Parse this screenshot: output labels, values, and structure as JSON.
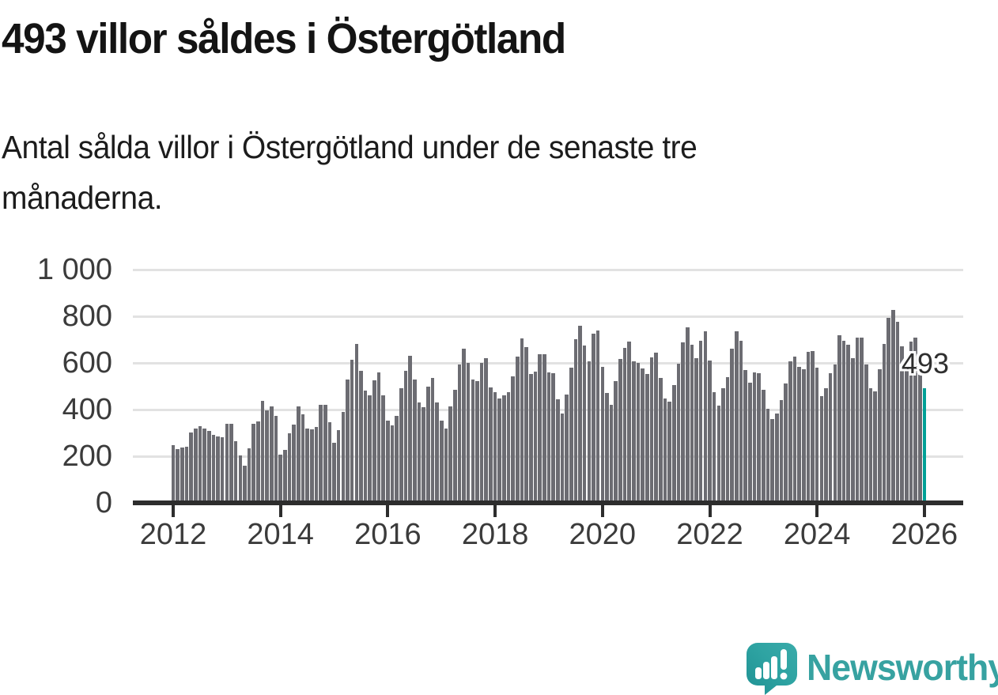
{
  "header": {
    "title": "493 villor såldes i Östergötland",
    "subtitle_line1": "Antal sålda villor i Östergötland under de senaste tre",
    "subtitle_line2": "månaderna."
  },
  "chart_data": {
    "type": "bar",
    "title": "Antal sålda villor i Östergötland under de senaste tre månaderna",
    "frequency": "monthly",
    "start_month": "2012-01",
    "end_month": "2026-01",
    "values": [
      248,
      231,
      236,
      240,
      301,
      319,
      329,
      319,
      308,
      290,
      285,
      282,
      338,
      338,
      265,
      204,
      159,
      233,
      338,
      350,
      437,
      397,
      414,
      372,
      208,
      227,
      297,
      335,
      414,
      380,
      318,
      316,
      324,
      422,
      422,
      346,
      259,
      312,
      389,
      528,
      615,
      681,
      566,
      483,
      460,
      525,
      559,
      460,
      354,
      333,
      372,
      490,
      566,
      630,
      528,
      429,
      411,
      497,
      536,
      432,
      352,
      320,
      415,
      486,
      593,
      661,
      600,
      528,
      522,
      600,
      619,
      494,
      475,
      446,
      460,
      475,
      543,
      628,
      704,
      668,
      554,
      562,
      638,
      638,
      560,
      556,
      443,
      384,
      466,
      581,
      702,
      759,
      676,
      607,
      724,
      739,
      582,
      470,
      420,
      523,
      618,
      664,
      693,
      607,
      600,
      577,
      554,
      625,
      645,
      534,
      449,
      434,
      505,
      596,
      687,
      752,
      679,
      619,
      695,
      736,
      610,
      474,
      417,
      493,
      538,
      661,
      735,
      695,
      568,
      516,
      561,
      556,
      485,
      402,
      360,
      383,
      440,
      513,
      607,
      627,
      584,
      572,
      647,
      652,
      579,
      457,
      491,
      556,
      593,
      718,
      695,
      679,
      621,
      710,
      710,
      593,
      491,
      477,
      573,
      681,
      793,
      827,
      775,
      670,
      595,
      690,
      708,
      560,
      493
    ],
    "highlight": {
      "index": 168,
      "month": "2026-01",
      "value": 493,
      "label": "493"
    },
    "ylim": [
      0,
      1000
    ],
    "ytick_values": [
      0,
      200,
      400,
      600,
      800,
      1000
    ],
    "ytick_labels": [
      "0",
      "200",
      "400",
      "600",
      "800",
      "1 000"
    ],
    "xtick_labels": [
      "2012",
      "2014",
      "2016",
      "2018",
      "2020",
      "2022",
      "2024",
      "2026"
    ],
    "grid": "horizontal",
    "legend": "none",
    "bar_color": "#6c6c72",
    "highlight_color": "#00a096",
    "gridline_color": "#e2e2e2",
    "axis_color": "#2d2d2d"
  },
  "annotation": {
    "value_label": "493"
  },
  "footer": {
    "brand_name": "Newsworthy",
    "brand_color": "#37a2a1"
  }
}
